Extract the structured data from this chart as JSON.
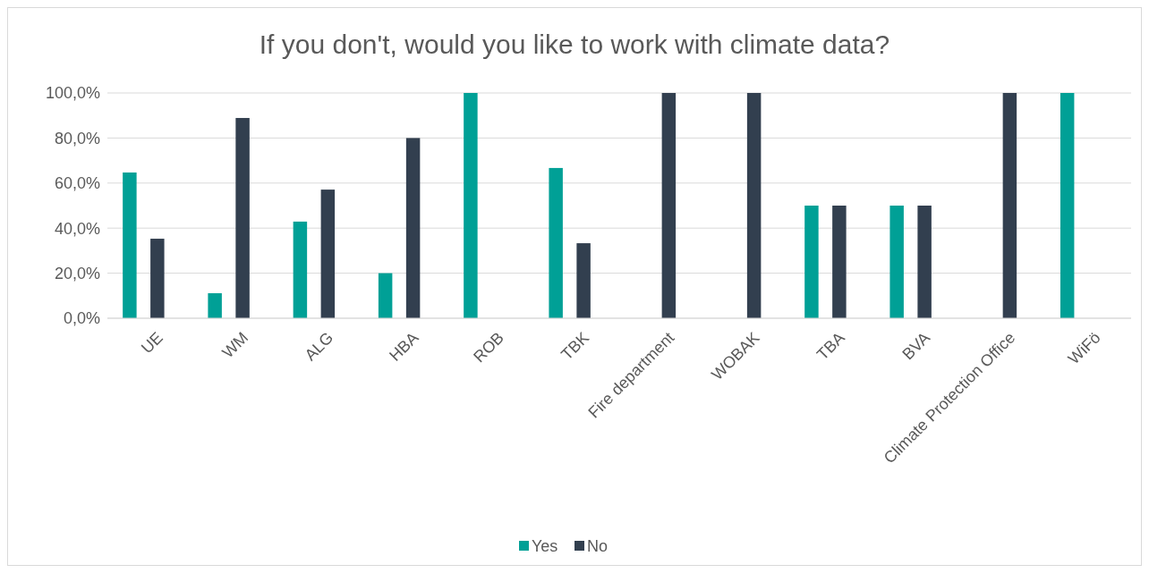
{
  "chart_data": {
    "type": "bar",
    "title": "If you don't, would you like to work with climate data?",
    "categories": [
      "UE",
      "WM",
      "ALG",
      "HBA",
      "ROB",
      "TBK",
      "Fire department",
      "WOBAK",
      "TBA",
      "BVA",
      "Climate Protection Office",
      "WiFö"
    ],
    "series": [
      {
        "name": "Yes",
        "color": "#00a096",
        "values": [
          64.7,
          11.1,
          42.9,
          20,
          100,
          66.7,
          0,
          0,
          50,
          50,
          0,
          100
        ]
      },
      {
        "name": "No",
        "color": "#323f4f",
        "values": [
          35.3,
          88.9,
          57.1,
          80,
          0,
          33.3,
          100,
          100,
          50,
          50,
          100,
          0
        ]
      }
    ],
    "ylim": [
      0,
      100
    ],
    "yticks": [
      {
        "value": 0,
        "label": "0,0%"
      },
      {
        "value": 20,
        "label": "20,0%"
      },
      {
        "value": 40,
        "label": "40,0%"
      },
      {
        "value": 60,
        "label": "60,0%"
      },
      {
        "value": 80,
        "label": "80,0%"
      },
      {
        "value": 100,
        "label": "100,0%"
      }
    ],
    "grid": "y",
    "legend": "bottom"
  }
}
